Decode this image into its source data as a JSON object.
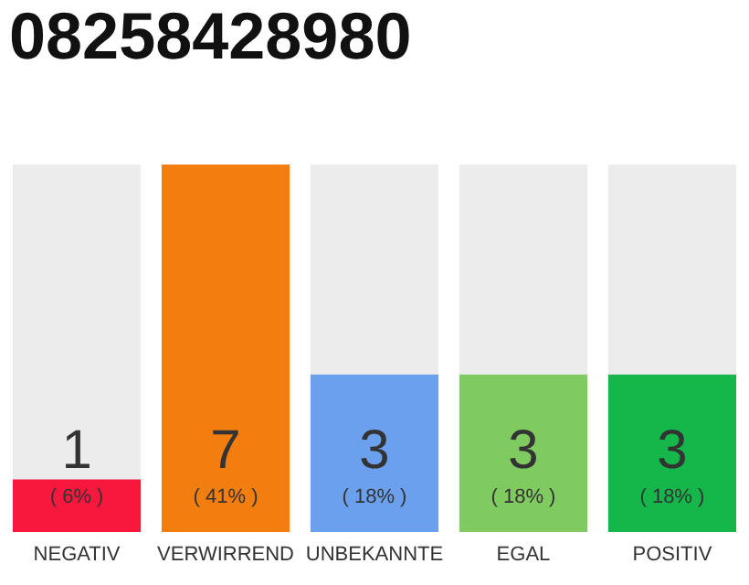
{
  "chart_data": {
    "type": "bar",
    "title": "08258428980",
    "categories": [
      "NEGATIV",
      "VERWIRREND",
      "UNBEKANNTE",
      "EGAL",
      "POSITIV"
    ],
    "values": [
      1,
      7,
      3,
      3,
      3
    ],
    "colors": [
      "#f9183d",
      "#f27e0f",
      "#6aa0ee",
      "#7fcb60",
      "#15b64a"
    ],
    "data_labels": true,
    "tick_labels": "x",
    "annotations": [
      "( 6% )",
      "( 41% )",
      "( 18% )",
      "( 18% )",
      "( 18% )"
    ]
  }
}
